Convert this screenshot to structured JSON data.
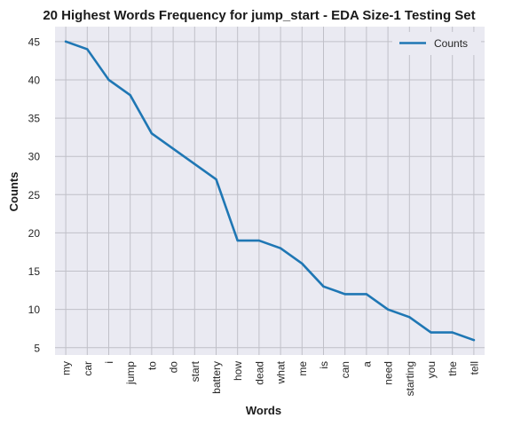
{
  "chart_data": {
    "type": "line",
    "title": "20 Highest Words Frequency for jump_start - EDA Size-1 Testing Set",
    "xlabel": "Words",
    "ylabel": "Counts",
    "categories": [
      "my",
      "car",
      "i",
      "jump",
      "to",
      "do",
      "start",
      "battery",
      "how",
      "dead",
      "what",
      "me",
      "is",
      "can",
      "a",
      "need",
      "starting",
      "you",
      "the",
      "tell"
    ],
    "series": [
      {
        "name": "Counts",
        "values": [
          45,
          44,
          40,
          38,
          33,
          31,
          29,
          27,
          19,
          19,
          18,
          16,
          13,
          12,
          12,
          10,
          9,
          7,
          7,
          6
        ]
      }
    ],
    "ylim": [
      4.05,
      46.95
    ],
    "yticks": [
      5,
      10,
      15,
      20,
      25,
      30,
      35,
      40,
      45
    ],
    "grid": true,
    "legend_position": "top-right",
    "colors": {
      "line": "#1f77b4",
      "background": "#eaeaf2",
      "grid": "#c0c0c8"
    }
  }
}
